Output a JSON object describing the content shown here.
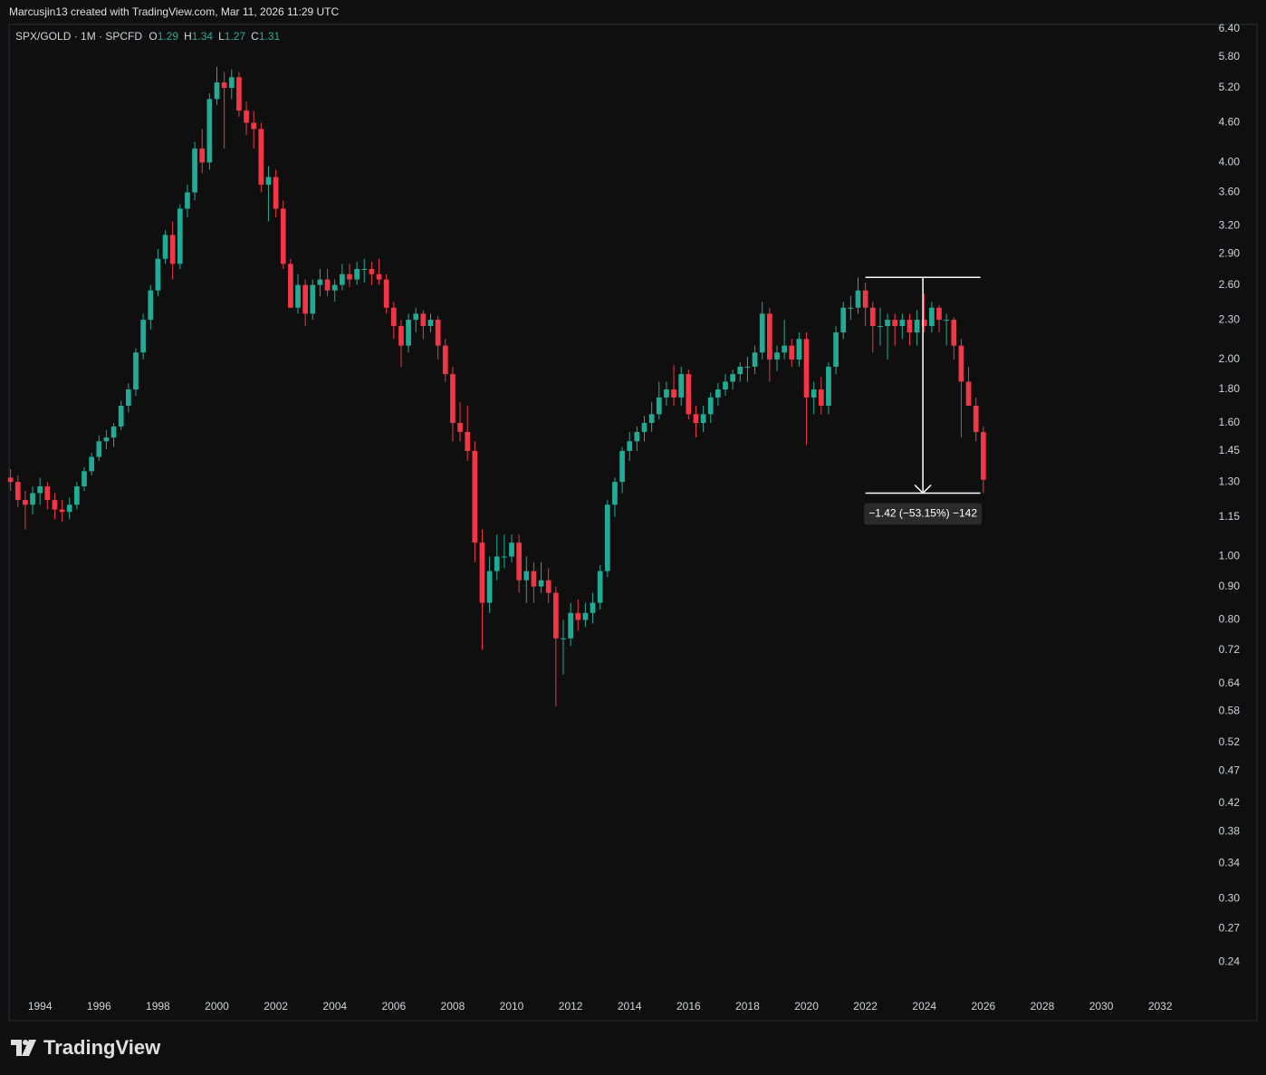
{
  "header": "Marcusjin13 created with TradingView.com, Mar 11, 2026 11:29 UTC",
  "footer": "TradingView",
  "chart_data": {
    "type": "candlestick",
    "symbol": "SPX/GOLD · 1M · SPCFD",
    "ohlc_names": [
      "O",
      "H",
      "L",
      "C"
    ],
    "ohlc_last": [
      1.29,
      1.34,
      1.27,
      1.31
    ],
    "log_scale": true,
    "grid": false,
    "up_color": "#22ab94",
    "down_color": "#f23645",
    "xlim": [
      1992.95,
      2033.5
    ],
    "xticks": [
      1994,
      1996,
      1998,
      2000,
      2002,
      2004,
      2006,
      2008,
      2010,
      2012,
      2014,
      2016,
      2018,
      2020,
      2022,
      2024,
      2026,
      2028,
      2030,
      2032
    ],
    "ylim": [
      0.215,
      6.5
    ],
    "yticks": [
      {
        "value": 6.4,
        "label": "6.40"
      },
      {
        "value": 5.8,
        "label": "5.80"
      },
      {
        "value": 5.2,
        "label": "5.20"
      },
      {
        "value": 4.6,
        "label": "4.60"
      },
      {
        "value": 4,
        "label": "4.00"
      },
      {
        "value": 3.6,
        "label": "3.60"
      },
      {
        "value": 3.2,
        "label": "3.20"
      },
      {
        "value": 2.9,
        "label": "2.90"
      },
      {
        "value": 2.6,
        "label": "2.60"
      },
      {
        "value": 2.3,
        "label": "2.30"
      },
      {
        "value": 2,
        "label": "2.00"
      },
      {
        "value": 1.8,
        "label": "1.80"
      },
      {
        "value": 1.6,
        "label": "1.60"
      },
      1.45,
      {
        "value": 1.3,
        "label": "1.30"
      },
      1.15,
      {
        "value": 1,
        "label": "1.00"
      },
      {
        "value": 0.9,
        "label": "0.90"
      },
      {
        "value": 0.8,
        "label": "0.80"
      },
      0.72,
      0.64,
      0.58,
      0.52,
      0.47,
      0.42,
      0.38,
      0.34,
      {
        "value": 0.3,
        "label": "0.30"
      },
      0.27,
      0.24
    ],
    "x": [
      1993,
      1993.25,
      1993.5,
      1993.75,
      1994,
      1994.25,
      1994.5,
      1994.75,
      1995,
      1995.25,
      1995.5,
      1995.75,
      1996,
      1996.25,
      1996.5,
      1996.75,
      1997,
      1997.25,
      1997.5,
      1997.75,
      1998,
      1998.25,
      1998.5,
      1998.75,
      1999,
      1999.25,
      1999.5,
      1999.75,
      2000,
      2000.25,
      2000.5,
      2000.75,
      2001,
      2001.25,
      2001.5,
      2001.75,
      2002,
      2002.25,
      2002.5,
      2002.75,
      2003,
      2003.25,
      2003.5,
      2003.75,
      2004,
      2004.25,
      2004.5,
      2004.75,
      2005,
      2005.25,
      2005.5,
      2005.75,
      2006,
      2006.25,
      2006.5,
      2006.75,
      2007,
      2007.25,
      2007.5,
      2007.75,
      2008,
      2008.25,
      2008.5,
      2008.75,
      2009,
      2009.25,
      2009.5,
      2009.75,
      2010,
      2010.25,
      2010.5,
      2010.75,
      2011,
      2011.25,
      2011.5,
      2011.75,
      2012,
      2012.25,
      2012.5,
      2012.75,
      2013,
      2013.25,
      2013.5,
      2013.75,
      2014,
      2014.25,
      2014.5,
      2014.75,
      2015,
      2015.25,
      2015.5,
      2015.75,
      2016,
      2016.25,
      2016.5,
      2016.75,
      2017,
      2017.25,
      2017.5,
      2017.75,
      2018,
      2018.25,
      2018.5,
      2018.75,
      2019,
      2019.25,
      2019.5,
      2019.75,
      2020,
      2020.25,
      2020.5,
      2020.75,
      2021,
      2021.25,
      2021.5,
      2021.75,
      2022,
      2022.25,
      2022.5,
      2022.75,
      2023,
      2023.25,
      2023.5,
      2023.75,
      2024,
      2024.25,
      2024.5,
      2024.75,
      2025,
      2025.25,
      2025.5,
      2025.75,
      2026
    ],
    "open": [
      1.32,
      1.3,
      1.22,
      1.2,
      1.25,
      1.28,
      1.22,
      1.18,
      1.17,
      1.2,
      1.28,
      1.35,
      1.42,
      1.5,
      1.52,
      1.58,
      1.7,
      1.8,
      2.05,
      2.3,
      2.55,
      2.85,
      3.1,
      2.8,
      3.4,
      3.6,
      4.2,
      4.0,
      5.0,
      5.3,
      5.2,
      5.4,
      4.8,
      4.6,
      4.5,
      3.7,
      3.8,
      3.4,
      2.8,
      2.4,
      2.6,
      2.35,
      2.6,
      2.65,
      2.55,
      2.6,
      2.7,
      2.65,
      2.75,
      2.75,
      2.7,
      2.65,
      2.4,
      2.25,
      2.1,
      2.3,
      2.35,
      2.25,
      2.3,
      2.1,
      1.9,
      1.6,
      1.55,
      1.45,
      1.05,
      0.85,
      0.95,
      1.0,
      1.0,
      1.05,
      0.92,
      0.95,
      0.9,
      0.92,
      0.88,
      0.75,
      0.75,
      0.82,
      0.8,
      0.82,
      0.85,
      0.95,
      1.2,
      1.3,
      1.45,
      1.5,
      1.55,
      1.6,
      1.65,
      1.75,
      1.8,
      1.75,
      1.9,
      1.65,
      1.6,
      1.65,
      1.75,
      1.8,
      1.85,
      1.9,
      1.95,
      1.95,
      2.05,
      2.35,
      2.0,
      2.05,
      2.1,
      2.0,
      2.15,
      1.75,
      1.8,
      1.7,
      1.95,
      2.2,
      2.4,
      2.4,
      2.55,
      2.4,
      2.25,
      2.25,
      2.3,
      2.25,
      2.3,
      2.2,
      2.3,
      2.25,
      2.4,
      2.3,
      2.3,
      2.1,
      1.85,
      1.7,
      1.55
    ],
    "high": [
      1.36,
      1.33,
      1.26,
      1.28,
      1.32,
      1.3,
      1.25,
      1.22,
      1.23,
      1.3,
      1.37,
      1.44,
      1.53,
      1.56,
      1.6,
      1.73,
      1.84,
      2.08,
      2.35,
      2.6,
      2.95,
      3.15,
      3.25,
      3.45,
      3.7,
      4.3,
      4.5,
      5.1,
      5.6,
      5.5,
      5.55,
      5.5,
      4.95,
      4.8,
      4.6,
      3.95,
      3.9,
      3.5,
      2.85,
      2.7,
      2.65,
      2.65,
      2.75,
      2.75,
      2.65,
      2.8,
      2.8,
      2.82,
      2.85,
      2.82,
      2.85,
      2.7,
      2.45,
      2.3,
      2.35,
      2.4,
      2.38,
      2.35,
      2.33,
      2.15,
      1.95,
      1.72,
      1.7,
      1.5,
      1.1,
      1.0,
      1.08,
      1.08,
      1.08,
      1.08,
      1.0,
      0.98,
      0.98,
      0.96,
      0.9,
      0.8,
      0.85,
      0.86,
      0.85,
      0.88,
      0.97,
      1.22,
      1.32,
      1.47,
      1.55,
      1.58,
      1.64,
      1.72,
      1.85,
      1.85,
      1.96,
      1.95,
      1.93,
      1.7,
      1.7,
      1.78,
      1.84,
      1.9,
      1.93,
      1.98,
      2.02,
      2.1,
      2.45,
      2.4,
      2.1,
      2.3,
      2.15,
      2.2,
      2.2,
      1.85,
      1.88,
      1.98,
      2.25,
      2.45,
      2.5,
      2.67,
      2.62,
      2.45,
      2.4,
      2.35,
      2.35,
      2.35,
      2.35,
      2.38,
      2.52,
      2.45,
      2.42,
      2.35,
      2.32,
      2.15,
      1.95,
      1.75,
      1.58
    ],
    "low": [
      1.26,
      1.19,
      1.1,
      1.16,
      1.2,
      1.18,
      1.14,
      1.13,
      1.14,
      1.18,
      1.26,
      1.33,
      1.4,
      1.46,
      1.47,
      1.56,
      1.66,
      1.76,
      2.0,
      2.22,
      2.5,
      2.8,
      2.65,
      2.75,
      3.3,
      3.5,
      3.85,
      3.9,
      4.9,
      4.2,
      5.0,
      4.7,
      4.4,
      4.2,
      3.6,
      3.25,
      3.3,
      2.75,
      2.4,
      2.35,
      2.25,
      2.3,
      2.5,
      2.5,
      2.45,
      2.55,
      2.58,
      2.6,
      2.62,
      2.6,
      2.6,
      2.35,
      2.15,
      1.95,
      2.05,
      2.2,
      2.15,
      2.2,
      2.0,
      1.85,
      1.5,
      1.5,
      1.4,
      0.98,
      0.72,
      0.82,
      0.92,
      0.96,
      0.98,
      0.88,
      0.85,
      0.85,
      0.88,
      0.85,
      0.59,
      0.66,
      0.73,
      0.77,
      0.78,
      0.79,
      0.83,
      0.93,
      1.15,
      1.25,
      1.4,
      1.45,
      1.5,
      1.55,
      1.62,
      1.7,
      1.7,
      1.7,
      1.62,
      1.52,
      1.55,
      1.6,
      1.7,
      1.76,
      1.8,
      1.85,
      1.85,
      1.9,
      2.0,
      1.85,
      1.92,
      2.0,
      1.95,
      1.95,
      1.48,
      1.65,
      1.65,
      1.65,
      1.9,
      2.15,
      2.3,
      2.35,
      2.25,
      2.05,
      2.1,
      2.0,
      2.1,
      2.15,
      2.1,
      2.1,
      2.2,
      2.2,
      2.2,
      2.1,
      2.0,
      1.52,
      1.7,
      1.5,
      1.25
    ],
    "close": [
      1.3,
      1.22,
      1.2,
      1.25,
      1.28,
      1.22,
      1.18,
      1.17,
      1.2,
      1.28,
      1.35,
      1.42,
      1.5,
      1.52,
      1.58,
      1.7,
      1.8,
      2.05,
      2.3,
      2.55,
      2.85,
      3.1,
      2.8,
      3.4,
      3.6,
      4.2,
      4.0,
      5.0,
      5.3,
      5.2,
      5.4,
      4.8,
      4.6,
      4.5,
      3.7,
      3.8,
      3.4,
      2.8,
      2.4,
      2.6,
      2.35,
      2.6,
      2.65,
      2.55,
      2.6,
      2.7,
      2.65,
      2.75,
      2.75,
      2.7,
      2.65,
      2.4,
      2.25,
      2.1,
      2.3,
      2.35,
      2.25,
      2.3,
      2.1,
      1.9,
      1.6,
      1.55,
      1.45,
      1.05,
      0.85,
      0.95,
      1.0,
      1.0,
      1.05,
      0.92,
      0.95,
      0.9,
      0.92,
      0.88,
      0.75,
      0.75,
      0.82,
      0.8,
      0.82,
      0.85,
      0.95,
      1.2,
      1.3,
      1.45,
      1.5,
      1.55,
      1.6,
      1.65,
      1.75,
      1.8,
      1.75,
      1.9,
      1.65,
      1.6,
      1.65,
      1.75,
      1.8,
      1.85,
      1.9,
      1.95,
      1.95,
      2.05,
      2.35,
      2.0,
      2.05,
      2.1,
      2.0,
      2.15,
      1.75,
      1.8,
      1.7,
      1.95,
      2.2,
      2.4,
      2.4,
      2.55,
      2.4,
      2.25,
      2.25,
      2.3,
      2.25,
      2.3,
      2.2,
      2.3,
      2.25,
      2.4,
      2.3,
      2.3,
      2.1,
      1.85,
      1.7,
      1.55,
      1.31
    ],
    "measure": {
      "x": [
        2022.0,
        2025.9
      ],
      "from": 2.67,
      "to": 1.25,
      "label": "−1.42 (−53.15%) −142"
    }
  }
}
